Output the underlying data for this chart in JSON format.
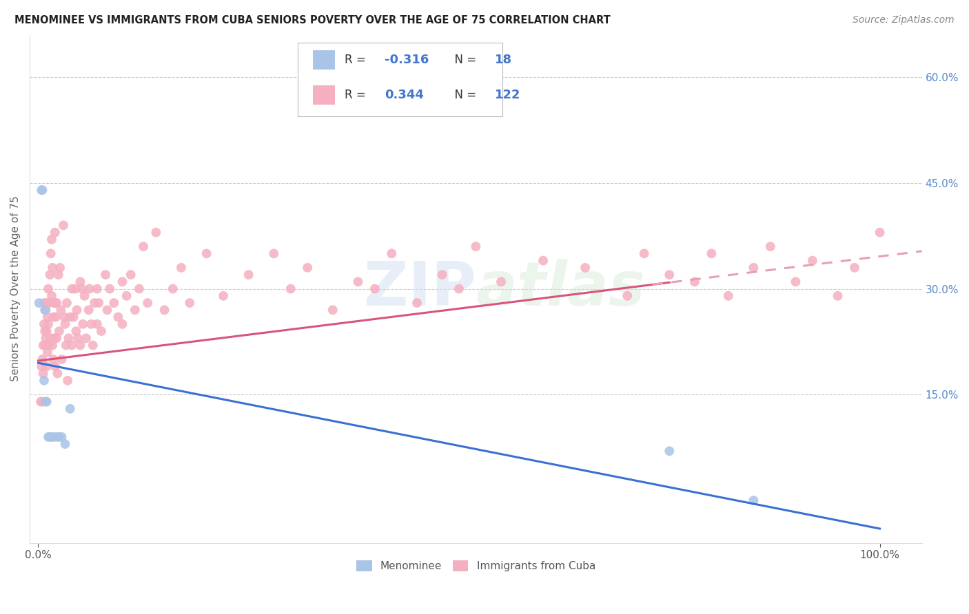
{
  "title": "MENOMINEE VS IMMIGRANTS FROM CUBA SENIORS POVERTY OVER THE AGE OF 75 CORRELATION CHART",
  "source": "Source: ZipAtlas.com",
  "ylabel": "Seniors Poverty Over the Age of 75",
  "background_color": "#ffffff",
  "watermark": "ZIPatlas",
  "menominee_color": "#aac4e8",
  "cuba_color": "#f5afc0",
  "menominee_R": -0.316,
  "menominee_N": 18,
  "cuba_R": 0.344,
  "cuba_N": 122,
  "legend_label_menominee": "Menominee",
  "legend_label_cuba": "Immigrants from Cuba",
  "menominee_x": [
    0.001,
    0.004,
    0.005,
    0.007,
    0.008,
    0.009,
    0.01,
    0.012,
    0.014,
    0.016,
    0.018,
    0.022,
    0.025,
    0.028,
    0.032,
    0.038,
    0.75,
    0.85
  ],
  "menominee_y": [
    0.28,
    0.44,
    0.44,
    0.17,
    0.27,
    0.14,
    0.14,
    0.09,
    0.09,
    0.09,
    0.09,
    0.09,
    0.09,
    0.09,
    0.08,
    0.13,
    0.07,
    0.0
  ],
  "cuba_x": [
    0.003,
    0.004,
    0.005,
    0.005,
    0.006,
    0.006,
    0.007,
    0.007,
    0.008,
    0.008,
    0.009,
    0.009,
    0.01,
    0.01,
    0.01,
    0.011,
    0.011,
    0.012,
    0.012,
    0.013,
    0.013,
    0.014,
    0.015,
    0.015,
    0.016,
    0.016,
    0.017,
    0.017,
    0.018,
    0.018,
    0.019,
    0.019,
    0.02,
    0.02,
    0.02,
    0.021,
    0.022,
    0.022,
    0.023,
    0.024,
    0.025,
    0.026,
    0.027,
    0.028,
    0.03,
    0.031,
    0.032,
    0.033,
    0.034,
    0.035,
    0.036,
    0.038,
    0.04,
    0.04,
    0.042,
    0.044,
    0.045,
    0.046,
    0.047,
    0.05,
    0.05,
    0.052,
    0.053,
    0.055,
    0.057,
    0.06,
    0.061,
    0.063,
    0.065,
    0.067,
    0.07,
    0.07,
    0.072,
    0.075,
    0.08,
    0.082,
    0.085,
    0.09,
    0.095,
    0.1,
    0.1,
    0.105,
    0.11,
    0.115,
    0.12,
    0.125,
    0.13,
    0.14,
    0.15,
    0.16,
    0.17,
    0.18,
    0.2,
    0.22,
    0.25,
    0.28,
    0.3,
    0.32,
    0.35,
    0.38,
    0.4,
    0.42,
    0.45,
    0.48,
    0.5,
    0.52,
    0.55,
    0.6,
    0.65,
    0.7,
    0.72,
    0.75,
    0.78,
    0.8,
    0.82,
    0.85,
    0.87,
    0.9,
    0.92,
    0.95,
    0.97,
    1.0
  ],
  "cuba_y": [
    0.14,
    0.19,
    0.2,
    0.14,
    0.22,
    0.18,
    0.25,
    0.28,
    0.24,
    0.22,
    0.27,
    0.23,
    0.28,
    0.24,
    0.19,
    0.26,
    0.21,
    0.3,
    0.25,
    0.28,
    0.22,
    0.32,
    0.35,
    0.23,
    0.37,
    0.29,
    0.33,
    0.22,
    0.26,
    0.2,
    0.28,
    0.23,
    0.38,
    0.28,
    0.19,
    0.26,
    0.28,
    0.23,
    0.18,
    0.32,
    0.24,
    0.33,
    0.27,
    0.2,
    0.39,
    0.26,
    0.25,
    0.22,
    0.28,
    0.17,
    0.23,
    0.26,
    0.3,
    0.22,
    0.26,
    0.3,
    0.24,
    0.27,
    0.23,
    0.31,
    0.22,
    0.3,
    0.25,
    0.29,
    0.23,
    0.27,
    0.3,
    0.25,
    0.22,
    0.28,
    0.3,
    0.25,
    0.28,
    0.24,
    0.32,
    0.27,
    0.3,
    0.28,
    0.26,
    0.31,
    0.25,
    0.29,
    0.32,
    0.27,
    0.3,
    0.36,
    0.28,
    0.38,
    0.27,
    0.3,
    0.33,
    0.28,
    0.35,
    0.29,
    0.32,
    0.35,
    0.3,
    0.33,
    0.27,
    0.31,
    0.3,
    0.35,
    0.28,
    0.32,
    0.3,
    0.36,
    0.31,
    0.34,
    0.33,
    0.29,
    0.35,
    0.32,
    0.31,
    0.35,
    0.29,
    0.33,
    0.36,
    0.31,
    0.34,
    0.29,
    0.33,
    0.38
  ],
  "xlim": [
    -0.01,
    1.05
  ],
  "ylim": [
    -0.06,
    0.66
  ],
  "ytick_vals": [
    0.15,
    0.3,
    0.45,
    0.6
  ],
  "ytick_labels": [
    "15.0%",
    "30.0%",
    "45.0%",
    "60.0%"
  ],
  "xtick_vals": [
    0.0,
    1.0
  ],
  "xtick_labels": [
    "0.0%",
    "100.0%"
  ],
  "line_menominee_color": "#3a70d4",
  "line_cuba_color": "#d9547a",
  "line_cuba_dash_color": "#e8a0b0"
}
